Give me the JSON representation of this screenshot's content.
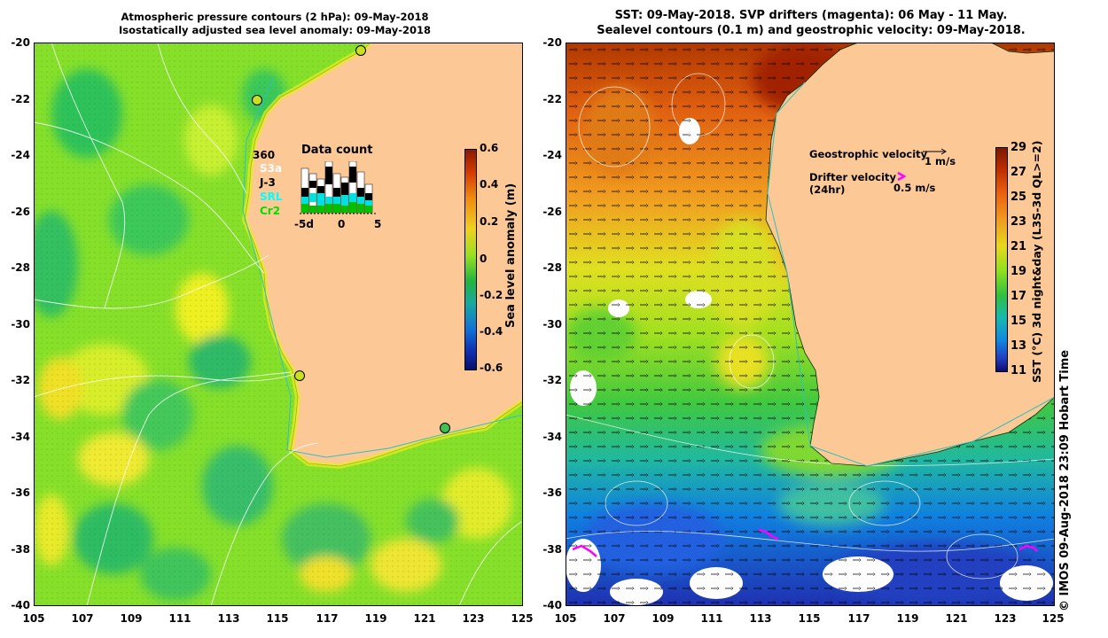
{
  "left_panel": {
    "title_line1": "Atmospheric pressure contours (2 hPa): 09-May-2018",
    "title_line2": "Isostatically adjusted sea level anomaly: 09-May-2018",
    "y_ticks": [
      "-20",
      "-22",
      "-24",
      "-26",
      "-28",
      "-30",
      "-32",
      "-34",
      "-36",
      "-38",
      "-40"
    ],
    "x_ticks": [
      "105",
      "107",
      "109",
      "111",
      "113",
      "115",
      "117",
      "119",
      "121",
      "123",
      "125"
    ],
    "colorbar": {
      "label": "Sea level anomaly (m)",
      "ticks": [
        "0.6",
        "0.4",
        "0.2",
        "0",
        "-0.2",
        "-0.4",
        "-0.6"
      ],
      "range": [
        -0.6,
        0.6
      ]
    },
    "data_count": {
      "title": "Data count",
      "satellites": [
        {
          "name": "360",
          "color": "#000000"
        },
        {
          "name": "S3a",
          "color": "#ffffff"
        },
        {
          "name": "J-3",
          "color": "#000000"
        },
        {
          "name": "SRL",
          "color": "#00ffff"
        },
        {
          "name": "Cr2",
          "color": "#00e000"
        }
      ],
      "x_ticks": [
        "-5d",
        "0",
        "5"
      ]
    },
    "tide_gauges": [
      {
        "lon": 118.5,
        "lat": -20.25
      },
      {
        "lon": 114.2,
        "lat": -22.0
      },
      {
        "lon": 115.9,
        "lat": -31.8
      },
      {
        "lon": 121.9,
        "lat": -33.6
      }
    ]
  },
  "right_panel": {
    "title_line1": "SST: 09-May-2018. SVP drifters (magenta): 06 May - 11 May.",
    "title_line2": "Sealevel contours (0.1 m) and geostrophic velocity: 09-May-2018.",
    "y_ticks": [
      "-20",
      "-22",
      "-24",
      "-26",
      "-28",
      "-30",
      "-32",
      "-34",
      "-36",
      "-38",
      "-40"
    ],
    "x_ticks": [
      "105",
      "107",
      "109",
      "111",
      "113",
      "115",
      "117",
      "119",
      "121",
      "123",
      "125"
    ],
    "colorbar": {
      "label": "SST (°C) 3d night&day (L3S-3d QL>=2)",
      "ticks": [
        "29",
        "27",
        "25",
        "23",
        "21",
        "19",
        "17",
        "15",
        "13",
        "11"
      ],
      "range": [
        11,
        29
      ]
    },
    "legend": {
      "geo_label": "Geostrophic velocity",
      "geo_scale": "1 m/s",
      "drifter_label1": "Drifter velocity",
      "drifter_label2": "(24hr)",
      "drifter_scale": "0.5 m/s"
    },
    "credit": "© IMOS 09-Aug-2018 23:09 Hobart Time"
  },
  "colors": {
    "land": "#fcc896",
    "sla_green": "#7ce21c",
    "magenta": "#ff00ff"
  },
  "map_extent": {
    "lon": [
      105,
      125
    ],
    "lat": [
      -40,
      -20
    ]
  }
}
